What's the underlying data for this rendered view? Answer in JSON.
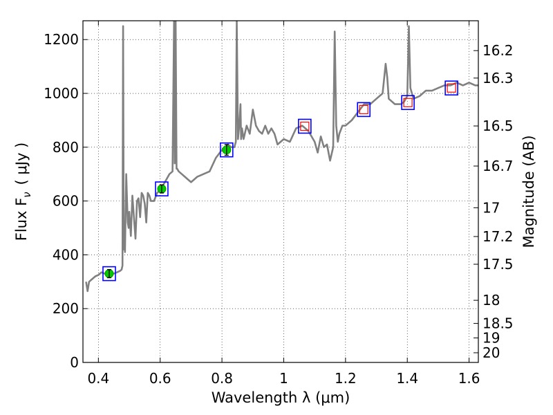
{
  "chart_data": {
    "type": "line",
    "xlabel": "Wavelength  λ (μm)",
    "ylabel": "Flux  F",
    "ylabel_sub": "ν",
    "ylabel_unit": "( μJy )",
    "y2label": "Magnitude (AB)",
    "xlim": [
      0.35,
      1.63
    ],
    "ylim": [
      0,
      1270
    ],
    "grid": true,
    "x_ticks": [
      {
        "value": 0.4,
        "label": "0.4"
      },
      {
        "value": 0.6,
        "label": "0.6"
      },
      {
        "value": 0.8,
        "label": "0.8"
      },
      {
        "value": 1.0,
        "label": "1"
      },
      {
        "value": 1.2,
        "label": "1.2"
      },
      {
        "value": 1.4,
        "label": "1.4"
      },
      {
        "value": 1.6,
        "label": "1.6"
      }
    ],
    "y_ticks": [
      {
        "value": 0,
        "label": "0"
      },
      {
        "value": 200,
        "label": "200"
      },
      {
        "value": 400,
        "label": "400"
      },
      {
        "value": 600,
        "label": "600"
      },
      {
        "value": 800,
        "label": "800"
      },
      {
        "value": 1000,
        "label": "1000"
      },
      {
        "value": 1200,
        "label": "1200"
      }
    ],
    "y2_ticks": [
      {
        "flux": 1159,
        "label": "16.2"
      },
      {
        "flux": 1057,
        "label": "16.3"
      },
      {
        "flux": 879,
        "label": "16.5"
      },
      {
        "flux": 730,
        "label": "16.7"
      },
      {
        "flux": 575,
        "label": "17"
      },
      {
        "flux": 468,
        "label": "17.2"
      },
      {
        "flux": 365,
        "label": "17.5"
      },
      {
        "flux": 231,
        "label": "18"
      },
      {
        "flux": 145,
        "label": "18.5"
      },
      {
        "flux": 91,
        "label": "19"
      },
      {
        "flux": 36,
        "label": "20"
      }
    ],
    "colors": {
      "spectrum": "#808080",
      "model_box": "#0000ff",
      "observed_box": "#ff0000",
      "observed_point": "#00cc00"
    },
    "spectrum": {
      "x": [
        0.36,
        0.365,
        0.37,
        0.38,
        0.39,
        0.4,
        0.41,
        0.42,
        0.43,
        0.44,
        0.45,
        0.46,
        0.47,
        0.475,
        0.478,
        0.48,
        0.482,
        0.484,
        0.486,
        0.49,
        0.495,
        0.498,
        0.5,
        0.505,
        0.51,
        0.52,
        0.525,
        0.53,
        0.535,
        0.54,
        0.545,
        0.55,
        0.555,
        0.56,
        0.565,
        0.57,
        0.58,
        0.59,
        0.6,
        0.61,
        0.62,
        0.63,
        0.64,
        0.645,
        0.647,
        0.65,
        0.653,
        0.655,
        0.66,
        0.67,
        0.68,
        0.69,
        0.7,
        0.72,
        0.74,
        0.76,
        0.78,
        0.8,
        0.82,
        0.83,
        0.84,
        0.845,
        0.848,
        0.852,
        0.856,
        0.86,
        0.862,
        0.865,
        0.87,
        0.88,
        0.89,
        0.9,
        0.91,
        0.92,
        0.93,
        0.94,
        0.95,
        0.96,
        0.97,
        0.98,
        1.0,
        1.02,
        1.04,
        1.06,
        1.08,
        1.1,
        1.11,
        1.12,
        1.13,
        1.14,
        1.15,
        1.16,
        1.165,
        1.17,
        1.175,
        1.18,
        1.19,
        1.2,
        1.22,
        1.24,
        1.26,
        1.28,
        1.3,
        1.32,
        1.33,
        1.335,
        1.34,
        1.36,
        1.38,
        1.39,
        1.4,
        1.405,
        1.41,
        1.42,
        1.44,
        1.46,
        1.48,
        1.5,
        1.52,
        1.54,
        1.56,
        1.58,
        1.6,
        1.62,
        1.63
      ],
      "y": [
        300,
        265,
        300,
        310,
        320,
        325,
        335,
        330,
        328,
        332,
        330,
        335,
        340,
        345,
        360,
        1250,
        420,
        480,
        410,
        700,
        520,
        500,
        560,
        470,
        620,
        460,
        600,
        610,
        540,
        630,
        620,
        590,
        520,
        630,
        620,
        600,
        600,
        630,
        640,
        660,
        680,
        700,
        710,
        1270,
        740,
        1270,
        720,
        720,
        710,
        700,
        690,
        680,
        670,
        690,
        700,
        710,
        760,
        790,
        810,
        800,
        800,
        820,
        1270,
        830,
        880,
        960,
        830,
        870,
        830,
        880,
        850,
        940,
        880,
        860,
        850,
        880,
        850,
        870,
        850,
        810,
        830,
        820,
        870,
        880,
        860,
        820,
        780,
        840,
        800,
        810,
        750,
        800,
        1230,
        880,
        820,
        850,
        880,
        880,
        900,
        930,
        960,
        960,
        980,
        1000,
        1110,
        1060,
        980,
        960,
        960,
        970,
        990,
        1250,
        1020,
        980,
        990,
        1010,
        1010,
        1020,
        1030,
        1030,
        1040,
        1030,
        1040,
        1030,
        1030
      ]
    },
    "photometry": [
      {
        "x": 0.435,
        "flux": 330,
        "err": 15,
        "type": "observed"
      },
      {
        "x": 0.605,
        "flux": 645,
        "err": 15,
        "type": "observed"
      },
      {
        "x": 0.815,
        "flux": 790,
        "err": 20,
        "type": "observed"
      },
      {
        "x": 1.068,
        "flux": 878,
        "type": "model"
      },
      {
        "x": 1.259,
        "flux": 940,
        "type": "model"
      },
      {
        "x": 1.402,
        "flux": 966,
        "type": "model"
      },
      {
        "x": 1.543,
        "flux": 1020,
        "type": "model"
      }
    ]
  }
}
